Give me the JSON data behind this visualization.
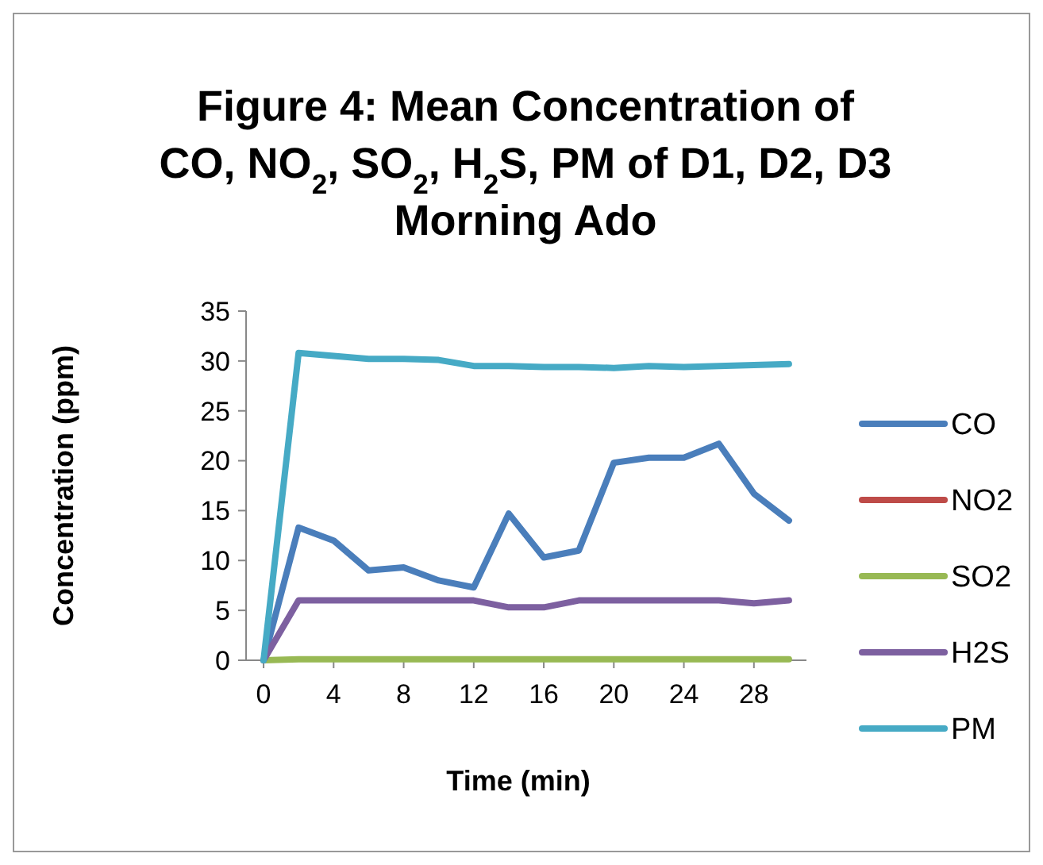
{
  "chart_data": {
    "type": "line",
    "title": "Figure 4: Mean Concentration of\nCO, NO$_{2}$, SO$_{2}$, H$_{2}$S, PM of D1, D2, D3\nMorning Ado",
    "xlabel": "Time (min)",
    "ylabel": "Concentration (ppm)",
    "x": [
      0,
      2,
      4,
      6,
      8,
      10,
      12,
      14,
      16,
      18,
      20,
      22,
      24,
      26,
      28,
      30
    ],
    "xlim": [
      -1,
      31
    ],
    "xticks": [
      0,
      4,
      8,
      12,
      16,
      20,
      24,
      28
    ],
    "ylim": [
      0,
      35
    ],
    "yticks": [
      0,
      5,
      10,
      15,
      20,
      25,
      30,
      35
    ],
    "grid": false,
    "legend": "right",
    "marker": "none",
    "line_style": "solid",
    "series": [
      {
        "name": "CO",
        "color": "#4a7ebb",
        "values": [
          0,
          13.3,
          12,
          9,
          9.3,
          8,
          7.3,
          14.7,
          10.3,
          11,
          19.8,
          20.3,
          20.3,
          21.7,
          16.7,
          14
        ]
      },
      {
        "name": "NO2",
        "color": "#be4b48",
        "values": [
          null,
          null,
          null,
          null,
          null,
          null,
          null,
          null,
          null,
          null,
          null,
          null,
          null,
          null,
          null,
          null
        ]
      },
      {
        "name": "SO2",
        "color": "#98b954",
        "values": [
          0,
          0.1,
          0.1,
          0.1,
          0.1,
          0.1,
          0.1,
          0.1,
          0.1,
          0.1,
          0.1,
          0.1,
          0.1,
          0.1,
          0.1,
          0.1
        ]
      },
      {
        "name": "H2S",
        "color": "#7d60a0",
        "values": [
          0,
          6,
          6,
          6,
          6,
          6,
          6,
          5.3,
          5.3,
          6,
          6,
          6,
          6,
          6,
          5.7,
          6
        ]
      },
      {
        "name": "PM",
        "color": "#46aac5",
        "values": [
          0,
          30.8,
          30.5,
          30.2,
          30.2,
          30.1,
          29.5,
          29.5,
          29.4,
          29.4,
          29.3,
          29.5,
          29.4,
          29.5,
          29.6,
          29.7
        ]
      }
    ]
  }
}
